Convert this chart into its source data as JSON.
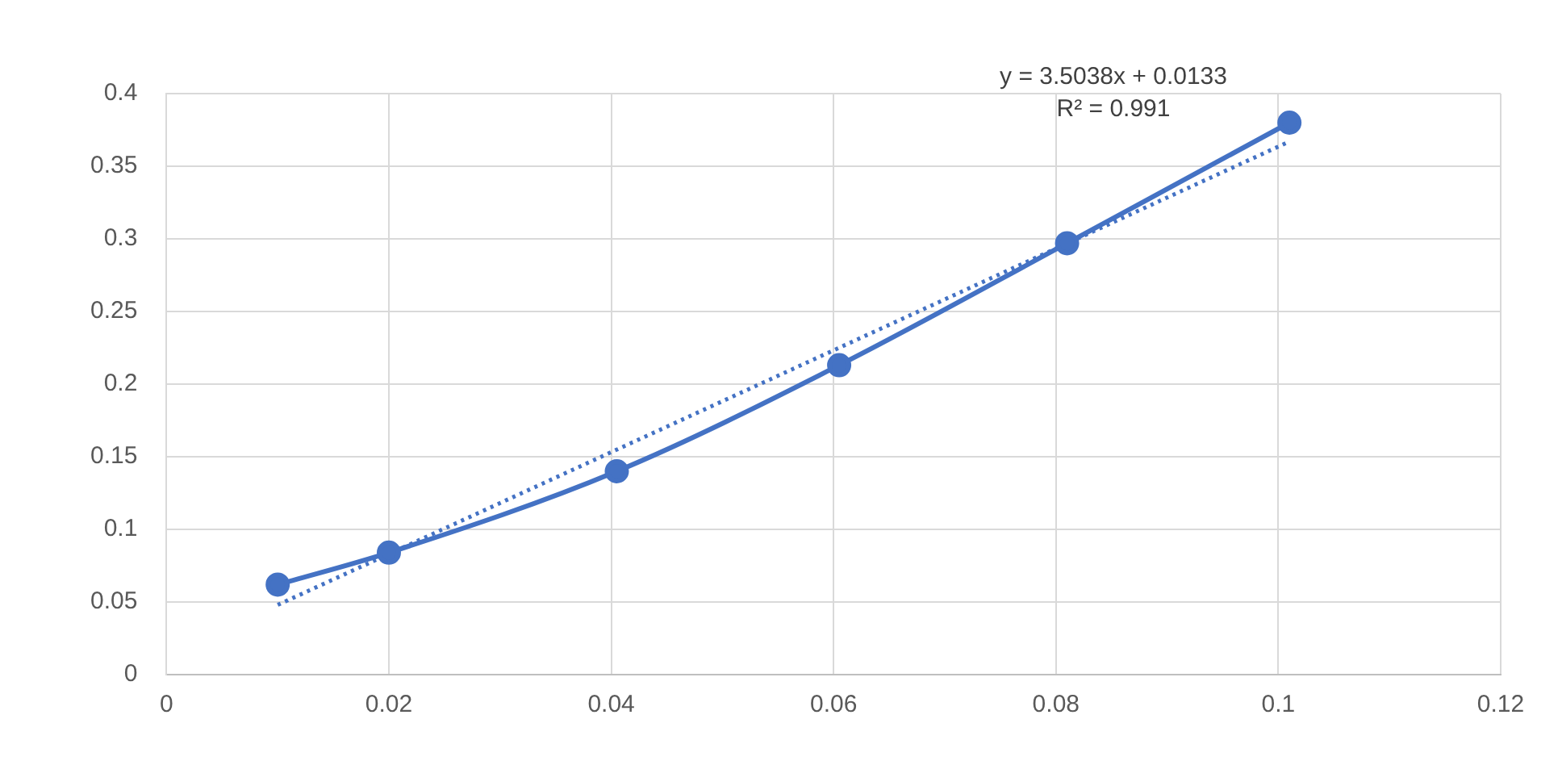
{
  "chart_data": {
    "type": "line",
    "annotations": [
      "y = 3.5038x + 0.0133",
      "R² = 0.991"
    ],
    "xlim": [
      0,
      0.12
    ],
    "xticks": [
      0,
      0.02,
      0.04,
      0.06,
      0.08,
      0.1,
      0.12
    ],
    "ylim": [
      0,
      0.4
    ],
    "yticks": [
      0,
      0.05,
      0.1,
      0.15,
      0.2,
      0.25,
      0.3,
      0.35,
      0.4
    ],
    "grid": true,
    "marker": "circle",
    "line_style": "solid",
    "series": [
      {
        "color": "#4472c4",
        "x": [
          0.01,
          0.02,
          0.0405,
          0.0605,
          0.081,
          0.101
        ],
        "values": [
          0.062,
          0.084,
          0.14,
          0.213,
          0.297,
          0.38
        ]
      },
      {
        "type": "line",
        "color": "#4472c4",
        "marker": "none",
        "line_style": "dotted",
        "x": [
          0.01,
          0.101
        ],
        "values": [
          0.048,
          0.367
        ]
      }
    ]
  }
}
